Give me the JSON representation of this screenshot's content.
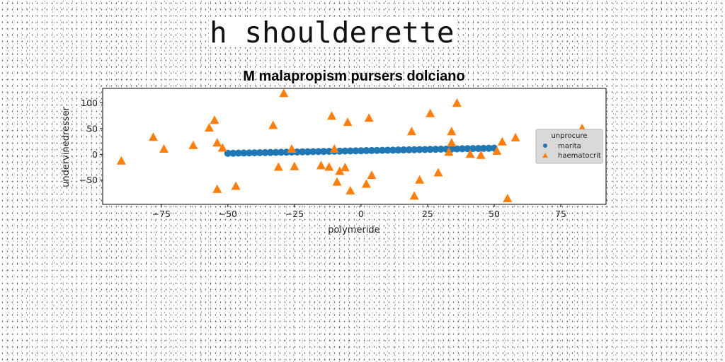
{
  "page_title": "h shoulderette",
  "chart_data": {
    "type": "scatter",
    "title": "M malapropism pursers dolciano",
    "xlabel": "polymeride",
    "ylabel": "undervinedresser",
    "xlim": [
      -97,
      92
    ],
    "ylim": [
      -97,
      128
    ],
    "xticks": [
      -75,
      -50,
      -25,
      0,
      25,
      50,
      75
    ],
    "yticks": [
      -50,
      0,
      50,
      100
    ],
    "grid": false,
    "legend": {
      "title": "unprocure",
      "placement": "right"
    },
    "series": [
      {
        "name": "marita",
        "marker": "circle",
        "color": "#1f77b4",
        "x": [
          -50,
          -48,
          -46,
          -44,
          -42,
          -40,
          -38,
          -36,
          -34,
          -32,
          -30,
          -28,
          -26,
          -24,
          -22,
          -20,
          -18,
          -16,
          -14,
          -12,
          -10,
          -8,
          -6,
          -4,
          -2,
          0,
          2,
          4,
          6,
          8,
          10,
          12,
          14,
          16,
          18,
          20,
          22,
          24,
          26,
          28,
          30,
          32,
          34,
          36,
          38,
          40,
          42,
          44,
          46,
          48,
          50
        ],
        "y": [
          2.0,
          2.2,
          2.4,
          2.6,
          2.8,
          3.0,
          3.2,
          3.4,
          3.6,
          3.8,
          4.0,
          4.2,
          4.4,
          4.6,
          4.8,
          5.0,
          5.2,
          5.4,
          5.6,
          5.8,
          6.0,
          6.2,
          6.4,
          6.6,
          6.8,
          7.0,
          7.2,
          7.4,
          7.6,
          7.8,
          8.0,
          8.2,
          8.4,
          8.6,
          8.8,
          9.0,
          9.2,
          9.4,
          9.6,
          9.8,
          10.0,
          10.2,
          10.4,
          10.6,
          10.8,
          11.0,
          11.2,
          11.4,
          11.6,
          11.8,
          12.0
        ]
      },
      {
        "name": "haematocrit",
        "marker": "triangle",
        "color": "#ff7f0e",
        "x": [
          -90,
          -78,
          -74,
          -63,
          -57,
          -55,
          -54,
          -54,
          -52,
          -47,
          -33,
          -31,
          -29,
          -26,
          -25,
          -15,
          -12,
          -11,
          -10,
          -9,
          -8,
          -6,
          -5,
          -4,
          2,
          3,
          4,
          19,
          20,
          22,
          26,
          29,
          33,
          34,
          34,
          36,
          41,
          45,
          51,
          53,
          55,
          58,
          83
        ],
        "y": [
          -13,
          33,
          10,
          17,
          51,
          66,
          22,
          -68,
          12,
          -62,
          56,
          -25,
          118,
          10,
          -24,
          -22,
          -25,
          74,
          10,
          -54,
          -33,
          -26,
          62,
          -71,
          -58,
          70,
          -41,
          44,
          -81,
          -50,
          79,
          -36,
          4,
          44,
          22,
          99,
          0,
          -2,
          6,
          24,
          -86,
          32,
          50
        ]
      }
    ]
  }
}
